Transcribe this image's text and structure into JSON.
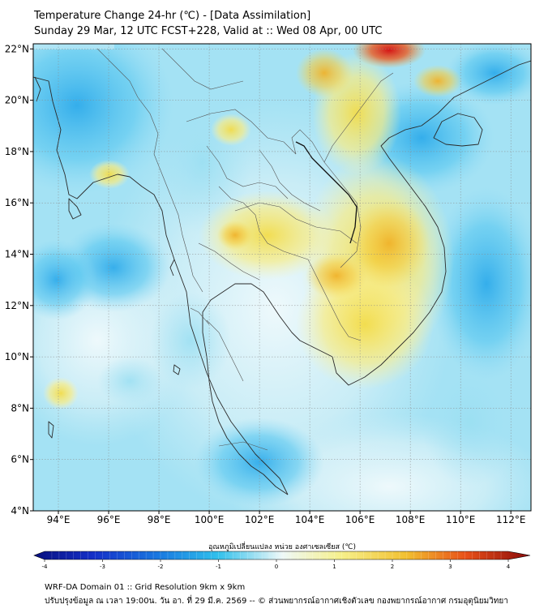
{
  "header": {
    "title": "Temperature Change 24-hr (℃) - [Data Assimilation]",
    "subtitle": "Sunday 29 Mar, 12 UTC FCST+228, Valid at :: Wed 08 Apr, 00 UTC"
  },
  "map": {
    "lat_labels": [
      "22°N",
      "20°N",
      "18°N",
      "16°N",
      "14°N",
      "12°N",
      "10°N",
      "8°N",
      "6°N",
      "4°N"
    ],
    "lon_labels": [
      "94°E",
      "96°E",
      "98°E",
      "100°E",
      "102°E",
      "104°E",
      "106°E",
      "108°E",
      "110°E",
      "112°E"
    ],
    "lat_values": [
      22,
      20,
      18,
      16,
      14,
      12,
      10,
      8,
      6,
      4
    ],
    "lon_values": [
      94,
      96,
      98,
      100,
      102,
      104,
      106,
      108,
      110,
      112
    ],
    "lat_range": [
      4,
      22.2
    ],
    "lon_range": [
      93,
      112.8
    ],
    "colors": {
      "cold_strong": "#0a1a9c",
      "cold": "#1ea0e6",
      "cool": "#55c8f0",
      "near_zero": "#eef8fa",
      "warm": "#f8ee80",
      "hot": "#f0a820",
      "hot_strong": "#c81010"
    }
  },
  "colorbar": {
    "label": "อุณหภูมิเปลี่ยนแปลง หน่วย องศาเซลเซียส (℃)",
    "ticks": [
      "-4",
      "-3",
      "-2",
      "-1",
      "0",
      "1",
      "2",
      "3",
      "4"
    ],
    "min": -4,
    "max": 4
  },
  "footer": {
    "line1": "WRF-DA Domain 01 :: Grid Resolution 9km x 9km",
    "line2": "ปรับปรุงข้อมูล ณ เวลา 19:00น. วัน อา. ที่ 29 มี.ค. 2569 -- © ส่วนพยากรณ์อากาศเชิงตัวเลข กองพยากรณ์อากาศ กรมอุตุนิยมวิทยา"
  }
}
